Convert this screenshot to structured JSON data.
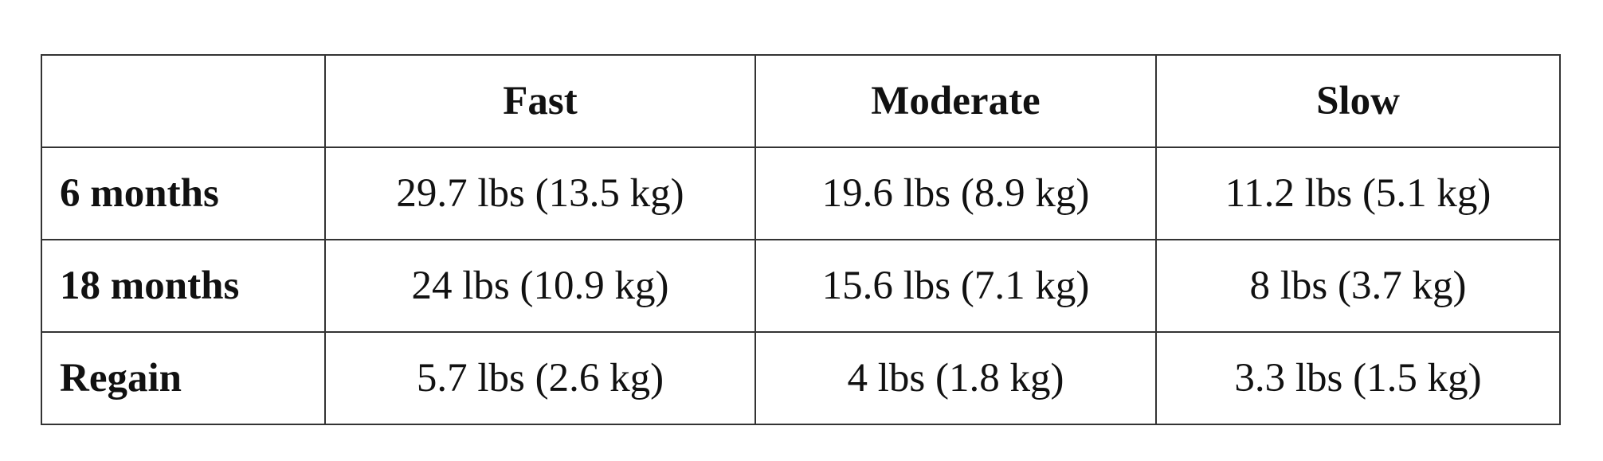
{
  "table": {
    "columns": [
      "Fast",
      "Moderate",
      "Slow"
    ],
    "rows": [
      {
        "label": "6 months",
        "cells": [
          "29.7 lbs (13.5 kg)",
          "19.6 lbs (8.9 kg)",
          "11.2 lbs (5.1 kg)"
        ]
      },
      {
        "label": "18 months",
        "cells": [
          "24 lbs (10.9 kg)",
          "15.6 lbs (7.1 kg)",
          "8 lbs (3.7 kg)"
        ]
      },
      {
        "label": "Regain",
        "cells": [
          "5.7 lbs (2.6 kg)",
          "4 lbs (1.8 kg)",
          "3.3 lbs (1.5 kg)"
        ]
      }
    ]
  }
}
